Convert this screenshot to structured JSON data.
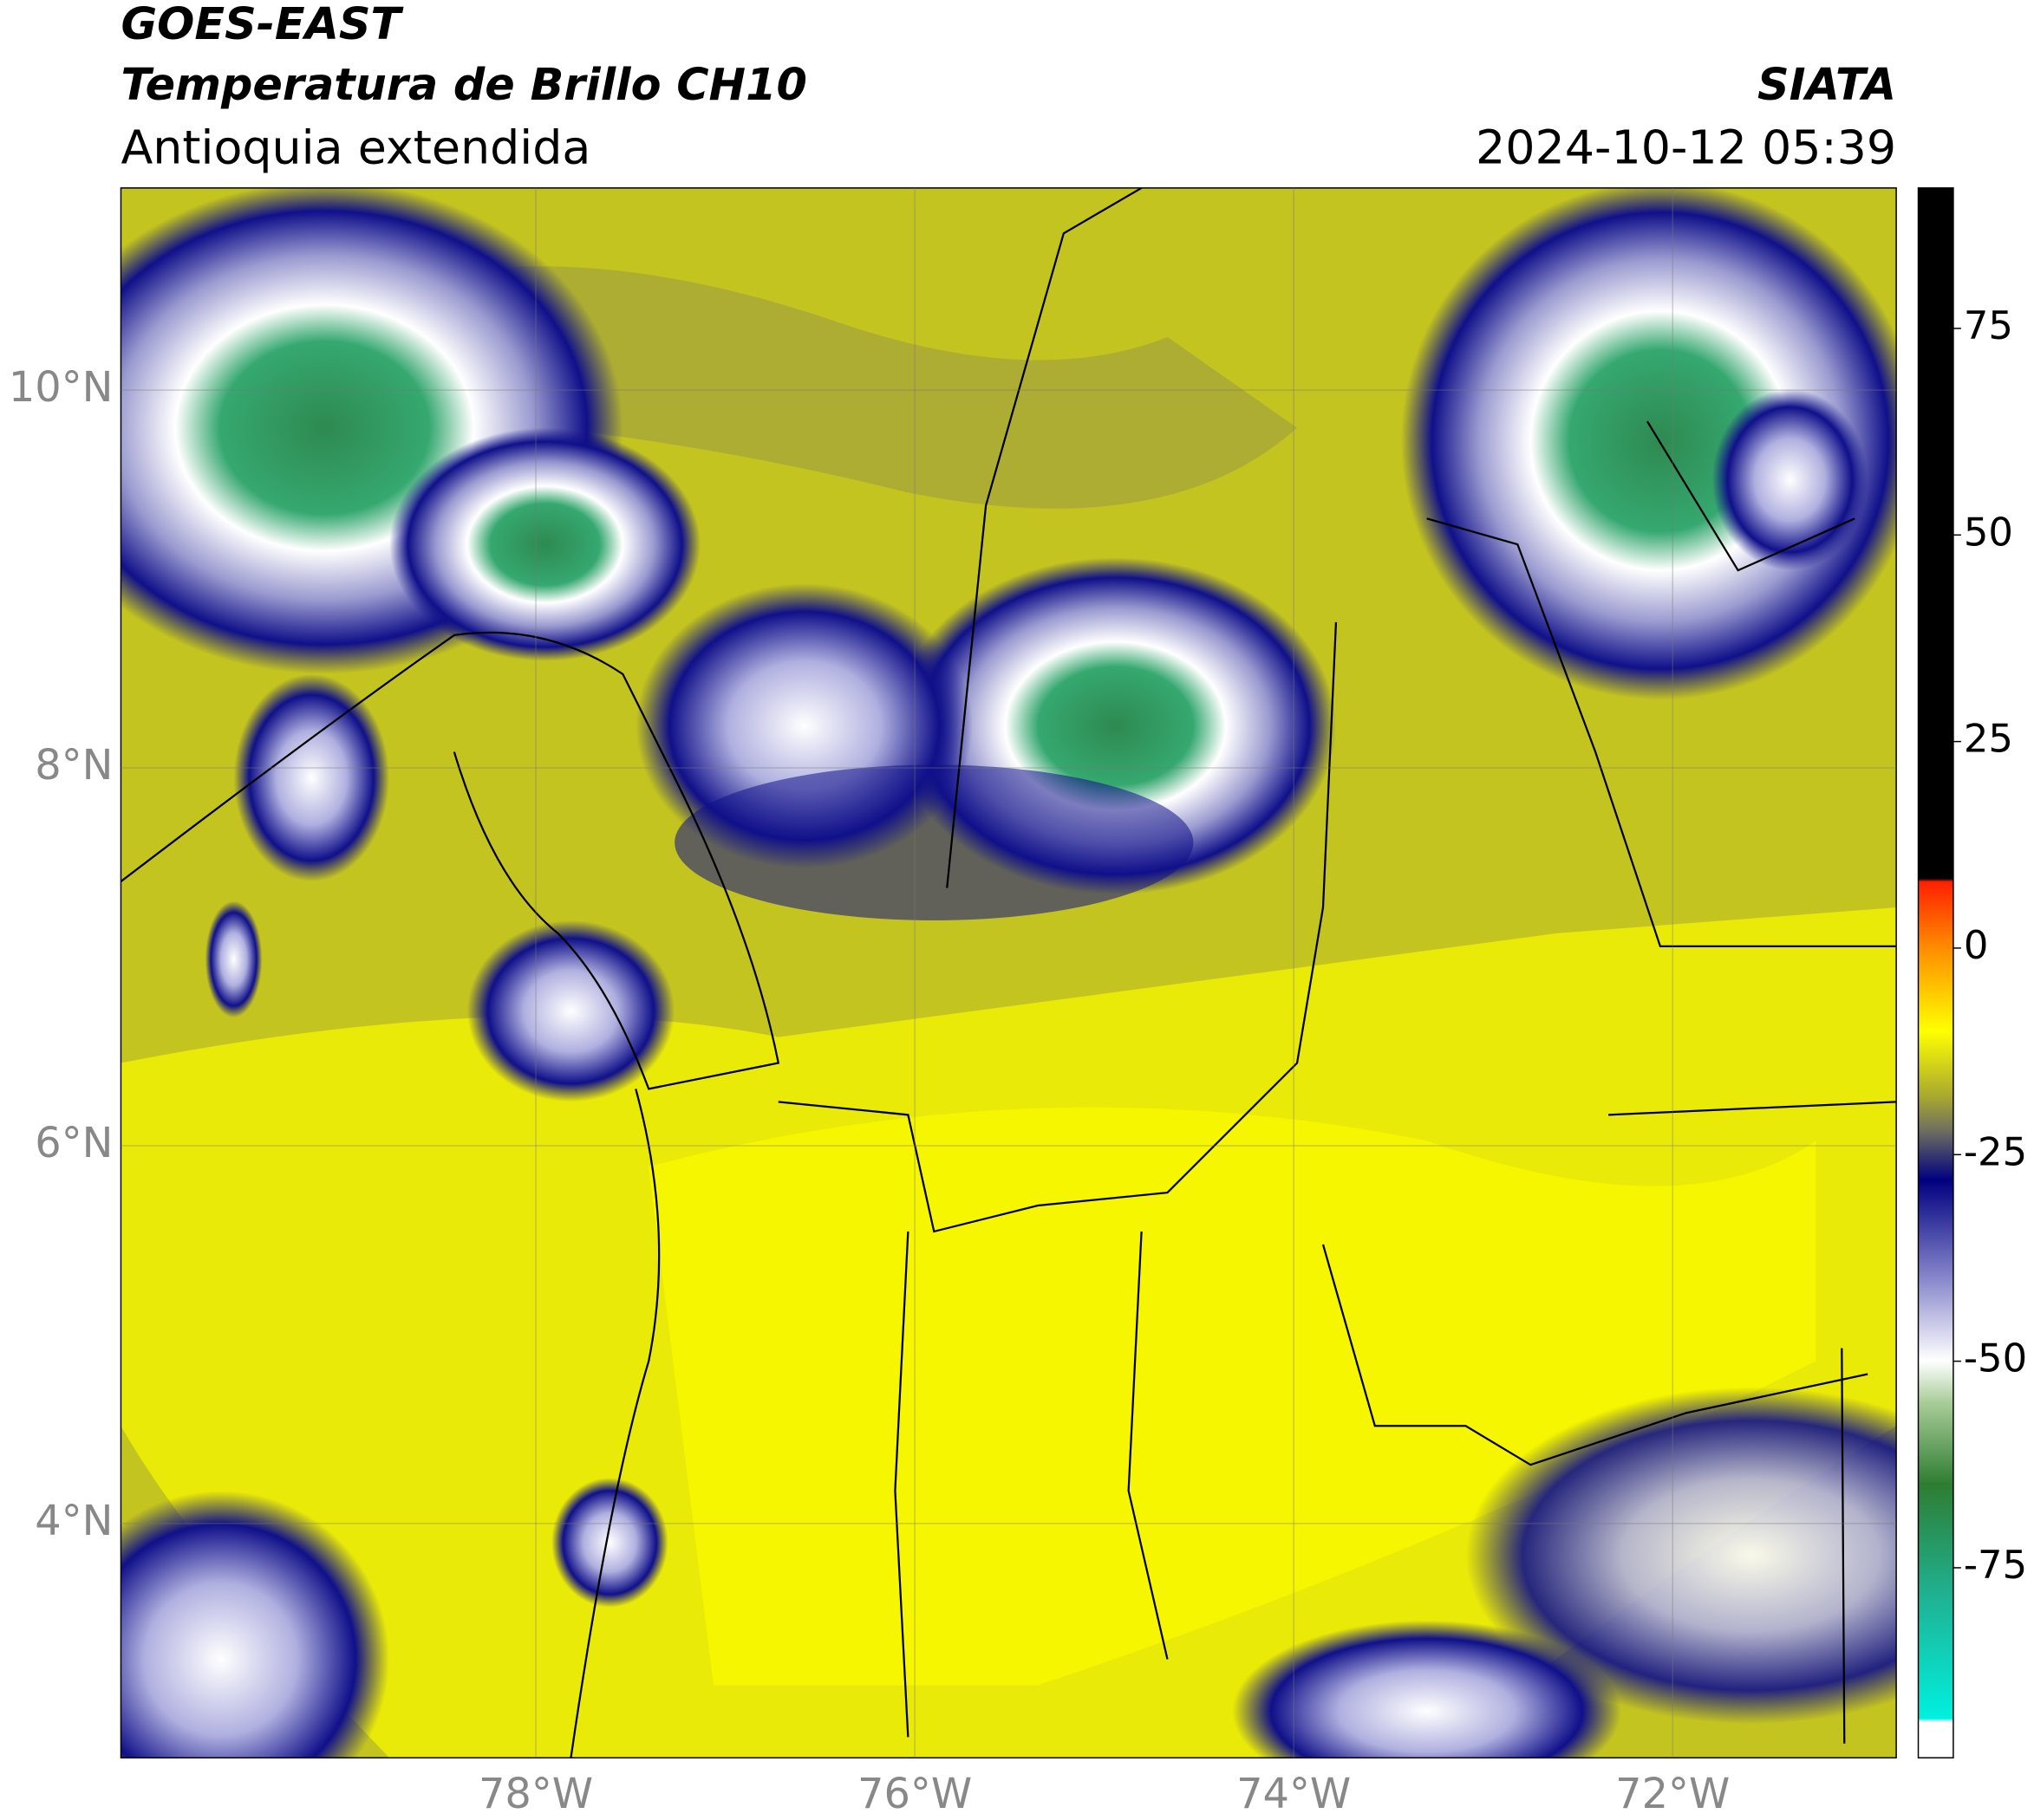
{
  "header": {
    "title": "GOES-EAST",
    "subtitle": "Temperatura de Brillo CH10",
    "region": "Antioquia extendida",
    "source": "SIATA",
    "datetime": "2024-10-12 05:39"
  },
  "map": {
    "lat_range": [
      2.76,
      11.07
    ],
    "lon_range": [
      -80.19,
      -70.82
    ],
    "lat_ticks": [
      {
        "value": 4,
        "label": "4°N"
      },
      {
        "value": 6,
        "label": "6°N"
      },
      {
        "value": 8,
        "label": "8°N"
      },
      {
        "value": 10,
        "label": "10°N"
      }
    ],
    "lon_ticks": [
      {
        "value": -78,
        "label": "78°W"
      },
      {
        "value": -76,
        "label": "76°W"
      },
      {
        "value": -74,
        "label": "74°W"
      },
      {
        "value": -72,
        "label": "72°W"
      }
    ]
  },
  "colorbar": {
    "range": [
      -98,
      92
    ],
    "ticks": [
      -75,
      -50,
      -25,
      0,
      25,
      50,
      75
    ]
  }
}
